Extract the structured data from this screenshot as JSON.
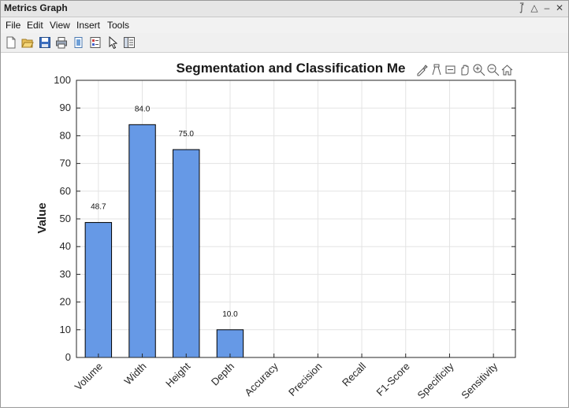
{
  "window": {
    "title": "Metrics Graph",
    "controls": [
      "pin-icon",
      "maximize-icon",
      "minimize-icon",
      "close-icon"
    ]
  },
  "menu": [
    "File",
    "Edit",
    "View",
    "Insert",
    "Tools"
  ],
  "toolbar": [
    "new-figure-icon",
    "open-file-icon",
    "save-icon",
    "print-icon",
    "link-plot-icon",
    "insert-colorbar-icon",
    "pointer-icon",
    "property-inspector-icon"
  ],
  "axes_toolbar": [
    "brush-icon",
    "data-tips-icon",
    "rotate-icon",
    "pan-icon",
    "zoom-in-icon",
    "zoom-out-icon",
    "home-icon"
  ],
  "colors": {
    "bar": "#6699e6",
    "bar_edge": "#000000",
    "grid": "#e3e3e3"
  },
  "chart_data": {
    "type": "bar",
    "title": "Segmentation and Classification Me",
    "xlabel": "",
    "ylabel": "Value",
    "categories": [
      "Volume",
      "Width",
      "Height",
      "Depth",
      "Accuracy",
      "Precision",
      "Recall",
      "F1-Score",
      "Specificity",
      "Sensitivity"
    ],
    "values": [
      48.7,
      84.0,
      75.0,
      10.0,
      null,
      null,
      null,
      null,
      null,
      null
    ],
    "data_labels": [
      "48.7",
      "84.0",
      "75.0",
      "10.0",
      "",
      "",
      "",
      "",
      "",
      ""
    ],
    "ylim": [
      0,
      100
    ],
    "yticks": [
      0,
      10,
      20,
      30,
      40,
      50,
      60,
      70,
      80,
      90,
      100
    ],
    "grid": true
  }
}
